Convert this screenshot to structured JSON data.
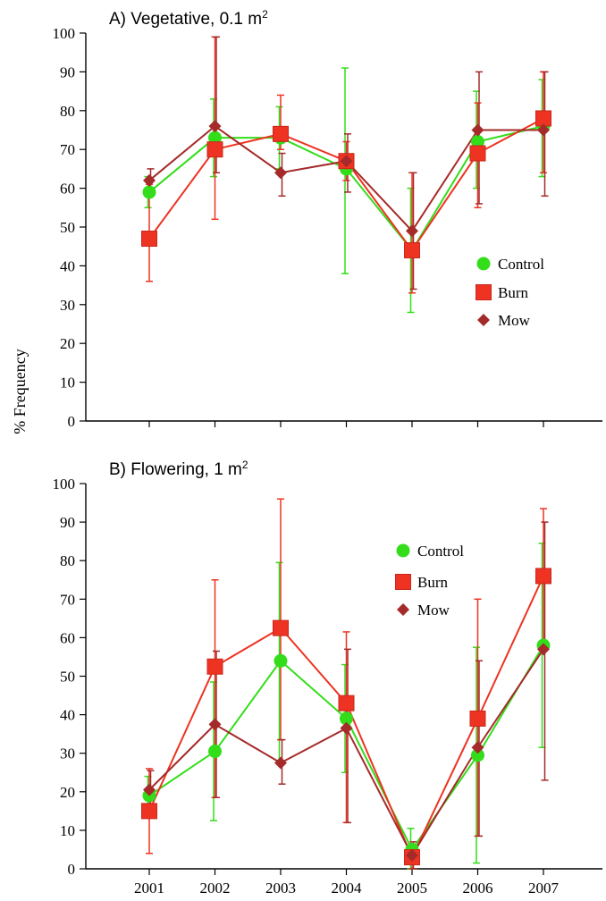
{
  "figure": {
    "ylabel": "% Frequency",
    "series_styles": [
      {
        "name": "Control",
        "color": "#33dd1a",
        "marker": "circle"
      },
      {
        "name": "Burn",
        "color": "#ee3322",
        "marker": "square"
      },
      {
        "name": "Mow",
        "color": "#a52a2a",
        "marker": "diamond"
      }
    ]
  },
  "chart_data": [
    {
      "type": "line",
      "title": "A) Vegetative, 0.1 m",
      "title_sup": "2",
      "xlabel": "",
      "ylabel": "% Frequency",
      "categories": [
        "2001",
        "2002",
        "2003",
        "2004",
        "2005",
        "2006",
        "2007"
      ],
      "show_x_tick_labels": false,
      "ylim": [
        0,
        100
      ],
      "yticks": [
        0,
        10,
        20,
        30,
        40,
        50,
        60,
        70,
        80,
        90,
        100
      ],
      "grid": false,
      "legend_position": "right",
      "series": [
        {
          "name": "Control",
          "values": [
            59,
            73,
            73,
            65,
            44,
            72,
            76
          ],
          "err_low": [
            55,
            63,
            65,
            38,
            28,
            60,
            63
          ],
          "err_high": [
            63,
            83,
            81,
            91,
            60,
            85,
            88
          ]
        },
        {
          "name": "Burn",
          "values": [
            47,
            70,
            74,
            67,
            44,
            69,
            78
          ],
          "err_low": [
            36,
            52,
            70,
            62,
            33,
            55,
            64
          ],
          "err_high": [
            61,
            99,
            84,
            72,
            64,
            82,
            90
          ]
        },
        {
          "name": "Mow",
          "values": [
            62,
            76,
            64,
            67,
            49,
            75,
            75
          ],
          "err_low": [
            58,
            64,
            58,
            59,
            34,
            56,
            58
          ],
          "err_high": [
            65,
            99,
            69,
            74,
            64,
            90,
            90
          ]
        }
      ]
    },
    {
      "type": "line",
      "title": "B) Flowering, 1 m",
      "title_sup": "2",
      "xlabel": "",
      "ylabel": "% Frequency",
      "categories": [
        "2001",
        "2002",
        "2003",
        "2004",
        "2005",
        "2006",
        "2007"
      ],
      "show_x_tick_labels": true,
      "ylim": [
        0,
        100
      ],
      "yticks": [
        0,
        10,
        20,
        30,
        40,
        50,
        60,
        70,
        80,
        90,
        100
      ],
      "grid": false,
      "legend_position": "top-right",
      "series": [
        {
          "name": "Control",
          "values": [
            19,
            30.5,
            54,
            39,
            5,
            29.5,
            58
          ],
          "err_low": [
            14,
            12.5,
            28,
            25,
            0,
            1.5,
            31.5
          ],
          "err_high": [
            24,
            48.5,
            79.5,
            53,
            10.5,
            57.5,
            84.5
          ]
        },
        {
          "name": "Burn",
          "values": [
            15,
            52.5,
            62.5,
            43,
            3,
            39,
            76
          ],
          "err_low": [
            4,
            18.5,
            33.5,
            12,
            0,
            8.5,
            58
          ],
          "err_high": [
            26,
            75,
            96,
            61.5,
            6,
            70,
            93.5
          ]
        },
        {
          "name": "Mow",
          "values": [
            20.5,
            37.5,
            27.5,
            36.5,
            3.5,
            31.5,
            57
          ],
          "err_low": [
            15.5,
            18.5,
            22,
            12,
            0,
            8.5,
            23
          ],
          "err_high": [
            25.5,
            56.5,
            33.5,
            57,
            7,
            54,
            90
          ]
        }
      ]
    }
  ]
}
